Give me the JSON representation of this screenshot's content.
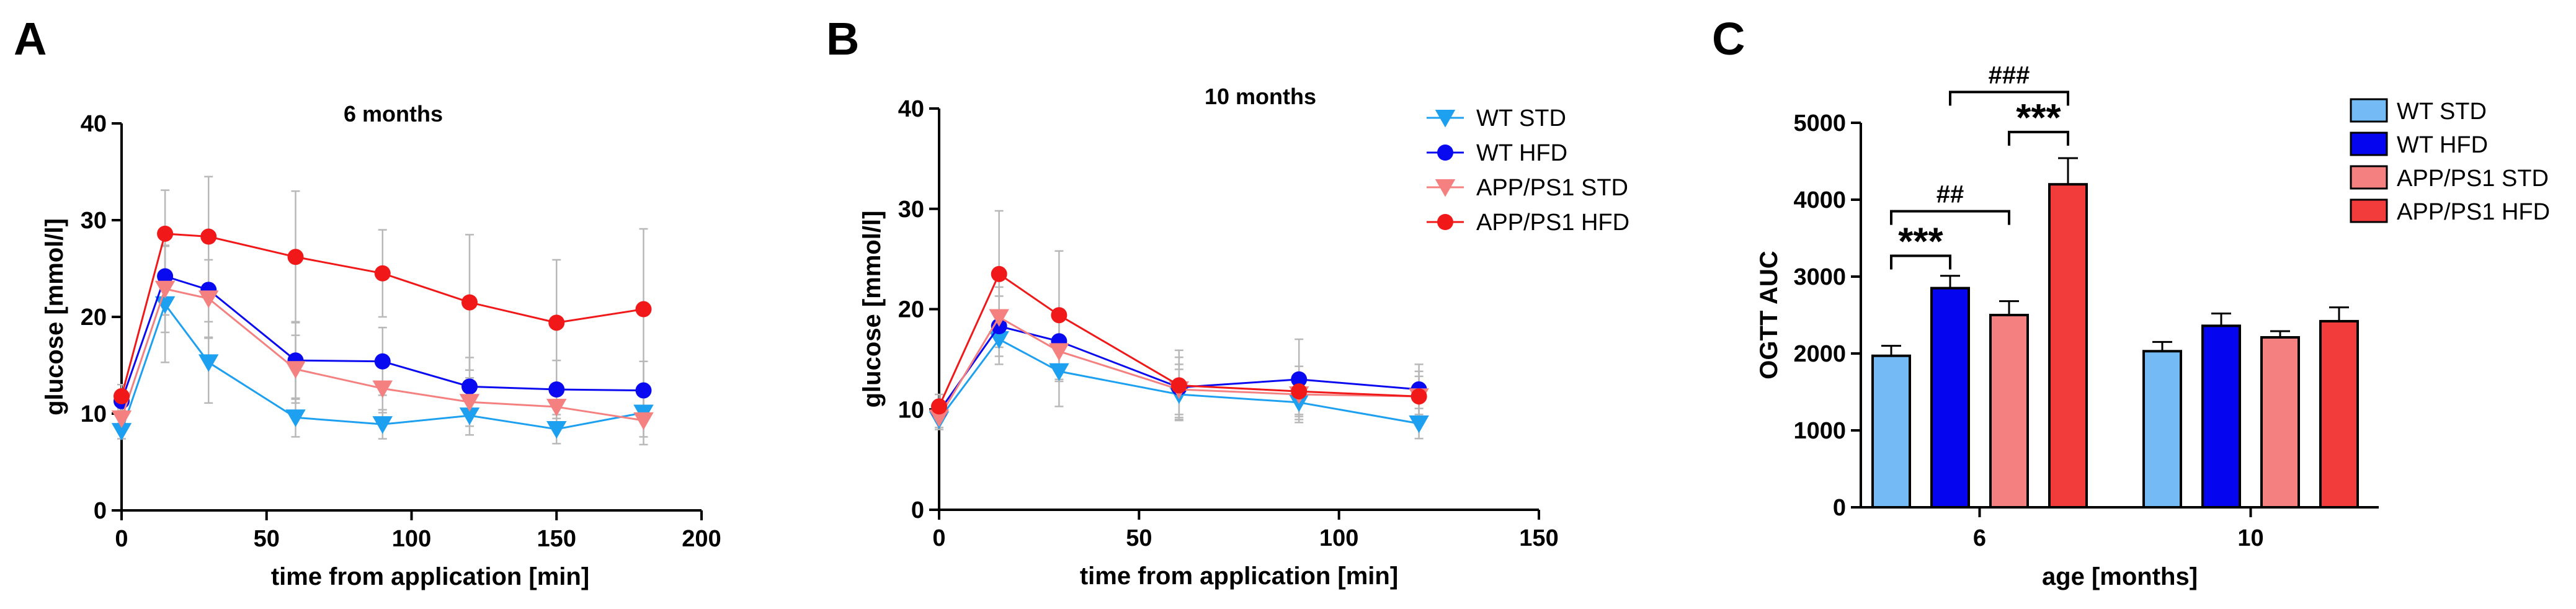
{
  "chart_data": [
    {
      "panel": "A",
      "type": "line",
      "title": "6 months",
      "xlabel": "time from application [min]",
      "ylabel": "glucose [mmol/l]",
      "xlim": [
        0,
        200
      ],
      "ylim": [
        0,
        40
      ],
      "xticks": [
        0,
        50,
        100,
        150,
        200
      ],
      "yticks": [
        0,
        10,
        20,
        30,
        40
      ],
      "x": [
        0,
        15,
        30,
        60,
        90,
        120,
        150,
        180
      ],
      "legend": "none",
      "series": [
        {
          "name": "WT STD",
          "color": "#1ea0f0",
          "marker": "triangle-down",
          "values": [
            8.2,
            21.3,
            15.3,
            9.6,
            8.9,
            9.8,
            8.4,
            10.1
          ],
          "errors": [
            0.8,
            6.0,
            4.2,
            2.0,
            1.5,
            2.0,
            1.5,
            2.5
          ]
        },
        {
          "name": "WT HFD",
          "color": "#0a0af0",
          "marker": "circle",
          "values": [
            11.3,
            24.2,
            22.8,
            15.5,
            15.4,
            12.8,
            12.5,
            12.4
          ],
          "errors": [
            1.0,
            4.0,
            5.0,
            4.0,
            3.5,
            3.0,
            3.0,
            3.0
          ]
        },
        {
          "name": "APP/PS1 STD",
          "color": "#f58080",
          "marker": "triangle-down",
          "values": [
            9.5,
            22.9,
            21.9,
            14.6,
            12.6,
            11.2,
            10.7,
            9.3
          ],
          "errors": [
            1.0,
            4.5,
            4.0,
            3.5,
            2.5,
            2.5,
            2.0,
            2.5
          ]
        },
        {
          "name": "APP/PS1 HFD",
          "color": "#f01818",
          "marker": "circle",
          "values": [
            11.8,
            28.6,
            28.3,
            26.2,
            24.5,
            21.5,
            19.4,
            20.8
          ],
          "errors": [
            1.2,
            4.5,
            6.2,
            6.8,
            4.5,
            7.0,
            6.5,
            8.3
          ]
        }
      ]
    },
    {
      "panel": "B",
      "type": "line",
      "title": "10 months",
      "xlabel": "time from application [min]",
      "ylabel": "glucose [mmol/l]",
      "xlim": [
        0,
        150
      ],
      "ylim": [
        0,
        40
      ],
      "xticks": [
        0,
        50,
        100,
        150
      ],
      "yticks": [
        0,
        10,
        20,
        30,
        40
      ],
      "x": [
        0,
        15,
        30,
        60,
        90,
        120
      ],
      "legend": "right",
      "series": [
        {
          "name": "WT STD",
          "color": "#1ea0f0",
          "marker": "triangle-down",
          "values": [
            9.0,
            17.0,
            13.8,
            11.5,
            10.7,
            8.6
          ],
          "errors": [
            1.0,
            2.5,
            3.5,
            2.5,
            2.0,
            1.5
          ]
        },
        {
          "name": "WT HFD",
          "color": "#0a0af0",
          "marker": "circle",
          "values": [
            9.8,
            18.3,
            16.8,
            12.2,
            13.0,
            12.0
          ],
          "errors": [
            1.0,
            3.0,
            3.0,
            3.0,
            4.0,
            2.5
          ]
        },
        {
          "name": "APP/PS1 STD",
          "color": "#f58080",
          "marker": "triangle-down",
          "values": [
            9.2,
            19.2,
            15.8,
            12.0,
            11.5,
            11.3
          ],
          "errors": [
            1.0,
            3.0,
            3.0,
            2.5,
            2.0,
            2.0
          ]
        },
        {
          "name": "APP/PS1 HFD",
          "color": "#f01818",
          "marker": "circle",
          "values": [
            10.3,
            23.5,
            19.4,
            12.4,
            11.8,
            11.3
          ],
          "errors": [
            1.2,
            6.3,
            6.4,
            3.5,
            2.5,
            2.5
          ]
        }
      ]
    },
    {
      "panel": "C",
      "type": "bar",
      "xlabel": "age [months]",
      "ylabel": "OGTT AUC",
      "ylim": [
        0,
        5000
      ],
      "yticks": [
        0,
        1000,
        2000,
        3000,
        4000,
        5000
      ],
      "categories": [
        "6",
        "10"
      ],
      "legend": "right",
      "series": [
        {
          "name": "WT STD",
          "color": "#74baf5",
          "values": [
            1970,
            2030
          ],
          "errors": [
            130,
            120
          ]
        },
        {
          "name": "WT HFD",
          "color": "#0505f0",
          "values": [
            2850,
            2360
          ],
          "errors": [
            160,
            160
          ]
        },
        {
          "name": "APP/PS1 STD",
          "color": "#f58080",
          "values": [
            2500,
            2210
          ],
          "errors": [
            180,
            80
          ]
        },
        {
          "name": "APP/PS1 HFD",
          "color": "#f23c3c",
          "values": [
            4200,
            2420
          ],
          "errors": [
            340,
            180
          ]
        }
      ],
      "annotations": [
        {
          "label": "***",
          "from_series": 0,
          "to_series": 1,
          "category": 0,
          "level": 3270
        },
        {
          "label": "##",
          "from_series": 0,
          "to_series": 2,
          "category": 0,
          "level": 3850
        },
        {
          "label": "***",
          "from_series": 2,
          "to_series": 3,
          "category": 0,
          "level": 4880
        },
        {
          "label": "###",
          "from_series": 1,
          "to_series": 3,
          "category": 0,
          "level": 5400
        }
      ]
    }
  ]
}
